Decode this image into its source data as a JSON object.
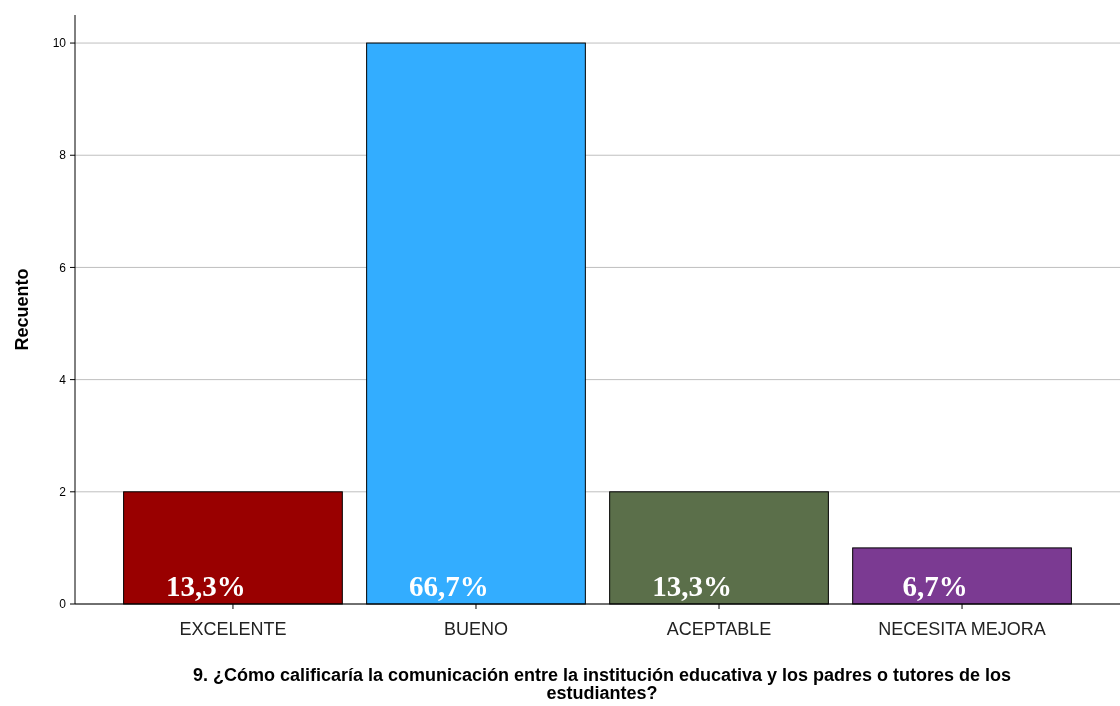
{
  "chart_data": {
    "type": "bar",
    "xlabel": "9. ¿Cómo calificaría la comunicación entre la institución educativa y los padres o tutores de los estudiantes?",
    "ylabel": "Recuento",
    "categories": [
      "EXCELENTE",
      "BUENO",
      "ACEPTABLE",
      "NECESITA MEJORA"
    ],
    "values": [
      2,
      10,
      2,
      1
    ],
    "colors": [
      "#990000",
      "#33adff",
      "#5b6f4a",
      "#7b3a92"
    ],
    "annotations": [
      {
        "text": "13,3%",
        "x": "EXCELENTE",
        "y": 0
      },
      {
        "text": "66,7%",
        "x": "BUENO",
        "y": 0
      },
      {
        "text": "13,3%",
        "x": "ACEPTABLE",
        "y": 0
      },
      {
        "text": "6,7%",
        "x": "NECESITA MEJORA",
        "y": 0
      }
    ],
    "ylim": [
      0,
      10.5
    ],
    "yticks": [
      0,
      2,
      4,
      6,
      8,
      10
    ],
    "grid": "y"
  }
}
